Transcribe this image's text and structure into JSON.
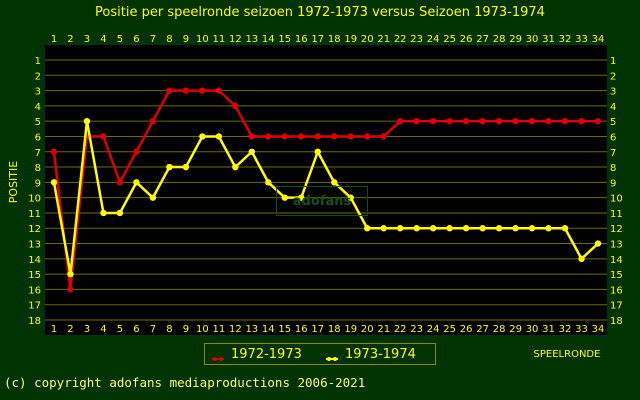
{
  "chart_data": {
    "type": "line",
    "title": "Positie per speelronde seizoen 1972-1973 versus Seizoen 1973-1974",
    "ylabel": "POSITIE",
    "xlabel": "SPEELRONDE",
    "x": [
      1,
      2,
      3,
      4,
      5,
      6,
      7,
      8,
      9,
      10,
      11,
      12,
      13,
      14,
      15,
      16,
      17,
      18,
      19,
      20,
      21,
      22,
      23,
      24,
      25,
      26,
      27,
      28,
      29,
      30,
      31,
      32,
      33,
      34
    ],
    "xlim": [
      1,
      34
    ],
    "ylim": [
      1,
      18
    ],
    "y_inverted": true,
    "y_ticks": [
      1,
      2,
      3,
      4,
      5,
      6,
      7,
      8,
      9,
      10,
      11,
      12,
      13,
      14,
      15,
      16,
      17,
      18
    ],
    "grid": true,
    "legend_position": "bottom-center",
    "series": [
      {
        "name": "1972-1973",
        "color": "#dd0000",
        "values": [
          7,
          16,
          6,
          6,
          9,
          7,
          5,
          3,
          3,
          3,
          3,
          4,
          6,
          6,
          6,
          6,
          6,
          6,
          6,
          6,
          6,
          5,
          5,
          5,
          5,
          5,
          5,
          5,
          5,
          5,
          5,
          5,
          5,
          5
        ]
      },
      {
        "name": "1973-1974",
        "color": "#ffff00",
        "values": [
          9,
          15,
          5,
          11,
          11,
          9,
          10,
          8,
          8,
          6,
          6,
          8,
          7,
          9,
          10,
          10,
          7,
          9,
          10,
          12,
          12,
          12,
          12,
          12,
          12,
          12,
          12,
          12,
          12,
          12,
          12,
          12,
          14,
          13
        ]
      }
    ],
    "annotations": []
  },
  "colors": {
    "background": "#003300",
    "plot_background": "#000000",
    "grid": "#6b6b00",
    "text": "#ffff00"
  },
  "footer": {
    "copyright": "(c) copyright adofans mediaproductions 2006-2021"
  },
  "watermark": "adofans"
}
